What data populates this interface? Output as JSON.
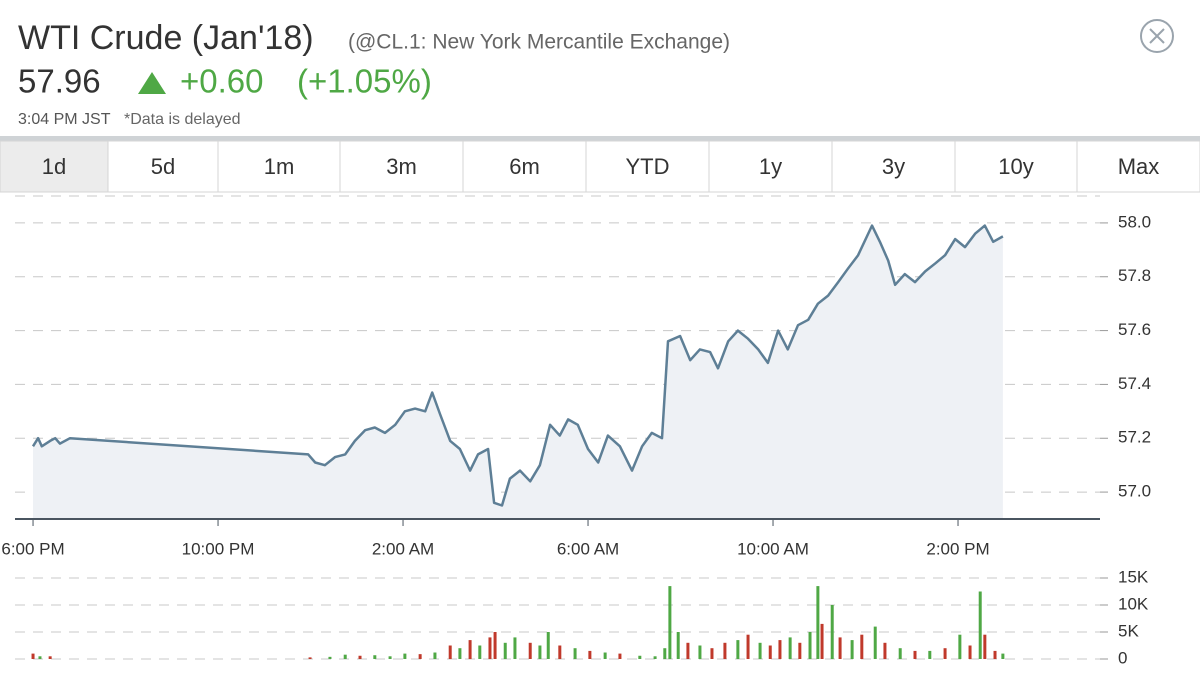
{
  "header": {
    "title": "WTI Crude (Jan'18)",
    "subtitle": "(@CL.1: New York Mercantile Exchange)",
    "price": "57.96",
    "change": "+0.60",
    "change_percent": "(+1.05%)",
    "time": "3:04 PM JST",
    "note": "*Data is delayed"
  },
  "tabs": [
    "1d",
    "5d",
    "1m",
    "3m",
    "6m",
    "YTD",
    "1y",
    "3y",
    "10y",
    "Max"
  ],
  "selected_tab": "1d",
  "chart_data": [
    {
      "type": "line",
      "line_color": "#5e7f96",
      "fill": "#eef1f5",
      "xlim": [
        -0.39,
        23.07
      ],
      "xticks": [
        {
          "value": 0,
          "label": "6:00 PM"
        },
        {
          "value": 4,
          "label": "10:00 PM"
        },
        {
          "value": 8,
          "label": "2:00 AM"
        },
        {
          "value": 12,
          "label": "6:00 AM"
        },
        {
          "value": 16,
          "label": "10:00 AM"
        },
        {
          "value": 20,
          "label": "2:00 PM"
        }
      ],
      "ylim": [
        56.9,
        58.1
      ],
      "yticks": [
        {
          "value": 57.0,
          "label": "57.0"
        },
        {
          "value": 57.2,
          "label": "57.2"
        },
        {
          "value": 57.4,
          "label": "57.4"
        },
        {
          "value": 57.6,
          "label": "57.6"
        },
        {
          "value": 57.8,
          "label": "57.8"
        },
        {
          "value": 58.0,
          "label": "58.0"
        }
      ],
      "grid": true,
      "x": [
        0,
        0.11,
        0.19,
        0.37,
        0.48,
        0.58,
        0.8,
        5.95,
        6.1,
        6.31,
        6.53,
        6.75,
        6.96,
        7.18,
        7.39,
        7.61,
        7.83,
        8.04,
        8.26,
        8.48,
        8.63,
        8.8,
        9.02,
        9.23,
        9.45,
        9.62,
        9.84,
        9.97,
        10.14,
        10.31,
        10.53,
        10.75,
        10.96,
        11.18,
        11.39,
        11.57,
        11.78,
        12.0,
        12.22,
        12.43,
        12.69,
        12.95,
        13.17,
        13.38,
        13.6,
        13.73,
        13.99,
        14.21,
        14.42,
        14.64,
        14.81,
        15.03,
        15.24,
        15.46,
        15.68,
        15.89,
        16.11,
        16.32,
        16.54,
        16.76,
        16.97,
        17.19,
        17.41,
        17.62,
        17.84,
        18.14,
        18.31,
        18.49,
        18.64,
        18.85,
        19.07,
        19.29,
        19.51,
        19.72,
        19.94,
        20.15,
        20.37,
        20.58,
        20.76,
        20.97
      ],
      "values": [
        57.17,
        57.2,
        57.17,
        57.19,
        57.2,
        57.18,
        57.2,
        57.14,
        57.11,
        57.1,
        57.13,
        57.14,
        57.19,
        57.23,
        57.24,
        57.22,
        57.25,
        57.3,
        57.31,
        57.3,
        57.37,
        57.29,
        57.19,
        57.16,
        57.08,
        57.14,
        57.16,
        56.96,
        56.95,
        57.05,
        57.08,
        57.04,
        57.1,
        57.25,
        57.21,
        57.27,
        57.25,
        57.16,
        57.11,
        57.21,
        57.17,
        57.08,
        57.17,
        57.22,
        57.2,
        57.56,
        57.58,
        57.49,
        57.53,
        57.52,
        57.46,
        57.56,
        57.6,
        57.57,
        57.53,
        57.48,
        57.6,
        57.53,
        57.62,
        57.64,
        57.7,
        57.73,
        57.78,
        57.83,
        57.88,
        57.99,
        57.93,
        57.86,
        57.77,
        57.81,
        57.78,
        57.82,
        57.85,
        57.88,
        57.94,
        57.91,
        57.96,
        57.99,
        57.93,
        57.95
      ]
    },
    {
      "type": "bar",
      "xlim": [
        -0.39,
        23.07
      ],
      "ylim": [
        0,
        15000
      ],
      "yticks": [
        0,
        {
          "value": 5000,
          "label": "5K"
        },
        {
          "value": 10000,
          "label": "10K"
        },
        {
          "value": 15000,
          "label": "15K"
        }
      ],
      "grid": true,
      "x": [
        0,
        0.15,
        0.37,
        5.99,
        6.42,
        6.75,
        7.07,
        7.39,
        7.72,
        8.04,
        8.37,
        8.69,
        9.02,
        9.23,
        9.45,
        9.66,
        9.88,
        9.99,
        10.21,
        10.42,
        10.75,
        10.96,
        11.14,
        11.39,
        11.72,
        12.04,
        12.37,
        12.69,
        13.12,
        13.45,
        13.66,
        13.77,
        13.95,
        14.16,
        14.42,
        14.68,
        14.96,
        15.24,
        15.46,
        15.72,
        15.94,
        16.15,
        16.37,
        16.58,
        16.8,
        16.97,
        17.06,
        17.28,
        17.45,
        17.71,
        17.92,
        18.21,
        18.42,
        18.75,
        19.07,
        19.39,
        19.72,
        20.04,
        20.26,
        20.48,
        20.58,
        20.8,
        20.97
      ],
      "values": [
        1000,
        500,
        500,
        300,
        400,
        800,
        600,
        700,
        500,
        1000,
        900,
        1200,
        2500,
        2000,
        3500,
        2500,
        4000,
        5000,
        3000,
        4000,
        3000,
        2500,
        5000,
        2500,
        2000,
        1500,
        1200,
        1000,
        600,
        500,
        2000,
        13500,
        5000,
        3000,
        2500,
        2000,
        3000,
        3500,
        4500,
        3000,
        2500,
        3500,
        4000,
        3000,
        5000,
        13500,
        6500,
        10000,
        4000,
        3500,
        4500,
        6000,
        3000,
        2000,
        1500,
        1500,
        2000,
        4500,
        2500,
        12500,
        4500,
        1500,
        1000
      ],
      "colors": [
        "#c0392b",
        "#4fa845",
        "#c0392b",
        "#c0392b",
        "#4fa845",
        "#4fa845",
        "#c0392b",
        "#4fa845",
        "#4fa845",
        "#4fa845",
        "#c0392b",
        "#4fa845",
        "#c0392b",
        "#4fa845",
        "#c0392b",
        "#4fa845",
        "#c0392b",
        "#c0392b",
        "#4fa845",
        "#4fa845",
        "#c0392b",
        "#4fa845",
        "#4fa845",
        "#c0392b",
        "#4fa845",
        "#c0392b",
        "#4fa845",
        "#c0392b",
        "#4fa845",
        "#4fa845",
        "#4fa845",
        "#4fa845",
        "#4fa845",
        "#c0392b",
        "#4fa845",
        "#c0392b",
        "#c0392b",
        "#4fa845",
        "#c0392b",
        "#4fa845",
        "#c0392b",
        "#c0392b",
        "#4fa845",
        "#c0392b",
        "#4fa845",
        "#4fa845",
        "#c0392b",
        "#4fa845",
        "#c0392b",
        "#4fa845",
        "#c0392b",
        "#4fa845",
        "#c0392b",
        "#4fa845",
        "#c0392b",
        "#4fa845",
        "#c0392b",
        "#4fa845",
        "#c0392b",
        "#4fa845",
        "#c0392b",
        "#c0392b",
        "#4fa845"
      ]
    }
  ]
}
